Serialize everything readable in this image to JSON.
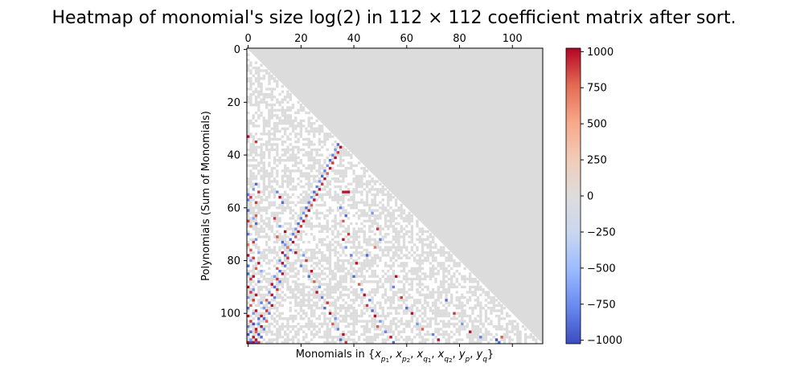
{
  "chart_data": {
    "type": "heatmap",
    "title": "Heatmap of monomial's size log(2) in 112 × 112 coefficient matrix after sort.",
    "xlabel": "Monomials in {x_{p1}, x_{p2}, x_{q1}, x_{q2}, y_p, y_q}",
    "xlabel_parts": {
      "prefix": "Monomials in ",
      "open": "{",
      "close": "}",
      "var": "x",
      "var_y": "y",
      "sub_p": "p",
      "sub_q": "q",
      "sub_1": "1",
      "sub_2": "2",
      "comma": ", "
    },
    "ylabel": "Polynomials (Sum of Monomials)",
    "matrix_size": [
      112,
      112
    ],
    "x_axis_position": "top",
    "xticks": [
      0,
      20,
      40,
      60,
      80,
      100
    ],
    "yticks": [
      0,
      20,
      40,
      60,
      80,
      100
    ],
    "xlim": [
      0,
      112
    ],
    "ylim": [
      0,
      112
    ],
    "upper_triangle_value": 0,
    "colorbar": {
      "colormap": "coolwarm",
      "vmin": -1024,
      "vmax": 1024,
      "ticks": [
        1000,
        750,
        500,
        250,
        0,
        -250,
        -500,
        -750,
        -1000
      ],
      "tick_labels": [
        "1000",
        "750",
        "500",
        "250",
        "0",
        "−250",
        "−500",
        "−750",
        "−1000"
      ],
      "stops": [
        "#3b4cc0",
        "#6889ee",
        "#9abbff",
        "#c9d7f0",
        "#dddcdc",
        "#f2cbb7",
        "#f7a889",
        "#e36a53",
        "#b40426"
      ]
    },
    "zero_color": "#dcdcdc",
    "empty_color": "#ffffff",
    "lower_triangle_pattern": {
      "description_of_cells": "white (no monomial) or grey (0) in lower triangle; colored cells are nonzero",
      "zero_fraction": 0.55
    },
    "nonzero_cells": [
      [
        33,
        0,
        1000
      ],
      [
        35,
        3,
        900
      ],
      [
        51,
        3,
        -900
      ],
      [
        53,
        2,
        -700
      ],
      [
        54,
        4,
        900
      ],
      [
        55,
        0,
        -800
      ],
      [
        56,
        1,
        900
      ],
      [
        57,
        0,
        -800
      ],
      [
        58,
        3,
        900
      ],
      [
        61,
        0,
        -900
      ],
      [
        63,
        3,
        800
      ],
      [
        64,
        2,
        -600
      ],
      [
        65,
        0,
        900
      ],
      [
        66,
        3,
        -900
      ],
      [
        67,
        1,
        700
      ],
      [
        70,
        0,
        -800
      ],
      [
        72,
        3,
        -700
      ],
      [
        73,
        2,
        900
      ],
      [
        74,
        0,
        700
      ],
      [
        76,
        1,
        800
      ],
      [
        77,
        4,
        -600
      ],
      [
        78,
        0,
        1000
      ],
      [
        79,
        2,
        900
      ],
      [
        80,
        1,
        -700
      ],
      [
        81,
        4,
        1000
      ],
      [
        82,
        0,
        -900
      ],
      [
        83,
        3,
        800
      ],
      [
        84,
        5,
        -600
      ],
      [
        85,
        0,
        -900
      ],
      [
        86,
        2,
        1000
      ],
      [
        87,
        1,
        900
      ],
      [
        88,
        4,
        -800
      ],
      [
        90,
        0,
        1000
      ],
      [
        91,
        2,
        -700
      ],
      [
        92,
        1,
        900
      ],
      [
        93,
        3,
        1000
      ],
      [
        94,
        0,
        -700
      ],
      [
        95,
        2,
        900
      ],
      [
        96,
        5,
        -800
      ],
      [
        97,
        1,
        800
      ],
      [
        98,
        0,
        -900
      ],
      [
        99,
        3,
        1000
      ],
      [
        100,
        2,
        -700
      ],
      [
        101,
        0,
        1000
      ],
      [
        102,
        4,
        -900
      ],
      [
        103,
        1,
        900
      ],
      [
        104,
        2,
        -1000
      ],
      [
        105,
        0,
        -800
      ],
      [
        106,
        3,
        1000
      ],
      [
        107,
        1,
        -900
      ],
      [
        108,
        0,
        -1000
      ],
      [
        109,
        2,
        1000
      ],
      [
        110,
        1,
        -700
      ],
      [
        111,
        0,
        1000
      ],
      [
        111,
        1,
        -1000
      ],
      [
        111,
        2,
        1000
      ],
      [
        111,
        3,
        -900
      ],
      [
        111,
        4,
        900
      ],
      [
        110,
        3,
        1000
      ],
      [
        109,
        5,
        -900
      ],
      [
        108,
        4,
        -1000
      ],
      [
        107,
        3,
        800
      ],
      [
        106,
        6,
        -800
      ],
      [
        105,
        5,
        1000
      ],
      [
        104,
        4,
        -700
      ],
      [
        103,
        7,
        800
      ],
      [
        102,
        6,
        -900
      ],
      [
        101,
        5,
        1000
      ],
      [
        100,
        8,
        -800
      ],
      [
        99,
        7,
        900
      ],
      [
        98,
        6,
        -700
      ],
      [
        97,
        9,
        1000
      ],
      [
        96,
        8,
        -900
      ],
      [
        95,
        7,
        800
      ],
      [
        94,
        10,
        -800
      ],
      [
        93,
        9,
        1000
      ],
      [
        92,
        8,
        -700
      ],
      [
        91,
        11,
        900
      ],
      [
        90,
        10,
        -900
      ],
      [
        89,
        9,
        1000
      ],
      [
        88,
        12,
        -800
      ],
      [
        87,
        11,
        900
      ],
      [
        86,
        10,
        -700
      ],
      [
        85,
        13,
        1000
      ],
      [
        84,
        12,
        -900
      ],
      [
        83,
        11,
        800
      ],
      [
        82,
        14,
        -800
      ],
      [
        81,
        13,
        1000
      ],
      [
        80,
        12,
        -700
      ],
      [
        79,
        15,
        900
      ],
      [
        78,
        14,
        -900
      ],
      [
        77,
        13,
        1000
      ],
      [
        76,
        16,
        -800
      ],
      [
        75,
        15,
        900
      ],
      [
        74,
        14,
        -700
      ],
      [
        73,
        17,
        1000
      ],
      [
        72,
        16,
        -900
      ],
      [
        71,
        18,
        800
      ],
      [
        70,
        17,
        -800
      ],
      [
        69,
        19,
        1000
      ],
      [
        68,
        18,
        -700
      ],
      [
        67,
        20,
        900
      ],
      [
        66,
        19,
        -900
      ],
      [
        65,
        21,
        1000
      ],
      [
        64,
        20,
        -800
      ],
      [
        63,
        22,
        900
      ],
      [
        62,
        21,
        -700
      ],
      [
        61,
        23,
        1000
      ],
      [
        60,
        22,
        -900
      ],
      [
        59,
        24,
        800
      ],
      [
        58,
        23,
        -800
      ],
      [
        57,
        25,
        1000
      ],
      [
        56,
        24,
        -700
      ],
      [
        55,
        26,
        900
      ],
      [
        54,
        25,
        -900
      ],
      [
        53,
        27,
        1000
      ],
      [
        52,
        26,
        -800
      ],
      [
        51,
        28,
        900
      ],
      [
        50,
        27,
        -700
      ],
      [
        49,
        29,
        1000
      ],
      [
        48,
        28,
        -900
      ],
      [
        47,
        30,
        800
      ],
      [
        46,
        29,
        -800
      ],
      [
        45,
        31,
        1000
      ],
      [
        44,
        30,
        -700
      ],
      [
        43,
        32,
        900
      ],
      [
        42,
        31,
        -900
      ],
      [
        41,
        33,
        1000
      ],
      [
        40,
        32,
        -800
      ],
      [
        39,
        34,
        900
      ],
      [
        38,
        33,
        -700
      ],
      [
        37,
        35,
        1000
      ],
      [
        36,
        34,
        -900
      ],
      [
        35,
        36,
        800
      ],
      [
        34,
        35,
        -800
      ],
      [
        33,
        37,
        1000
      ],
      [
        32,
        36,
        -700
      ],
      [
        31,
        38,
        900
      ],
      [
        30,
        37,
        -900
      ],
      [
        29,
        39,
        1000
      ],
      [
        28,
        38,
        -800
      ],
      [
        27,
        40,
        900
      ],
      [
        26,
        39,
        -700
      ],
      [
        25,
        41,
        1000
      ],
      [
        24,
        40,
        -900
      ],
      [
        23,
        42,
        800
      ],
      [
        22,
        41,
        -800
      ],
      [
        21,
        43,
        1000
      ],
      [
        20,
        42,
        -700
      ],
      [
        19,
        44,
        900
      ],
      [
        18,
        43,
        -900
      ],
      [
        17,
        45,
        1000
      ],
      [
        16,
        44,
        -800
      ],
      [
        15,
        46,
        900
      ],
      [
        14,
        45,
        -700
      ],
      [
        13,
        47,
        1000
      ],
      [
        12,
        46,
        -900
      ],
      [
        11,
        48,
        800
      ],
      [
        10,
        47,
        -800
      ],
      [
        9,
        49,
        1000
      ],
      [
        8,
        48,
        -700
      ],
      [
        7,
        50,
        900
      ],
      [
        6,
        49,
        -900
      ],
      [
        5,
        51,
        1000
      ],
      [
        4,
        50,
        -800
      ],
      [
        3,
        52,
        900
      ],
      [
        2,
        51,
        -700
      ],
      [
        1,
        53,
        1000
      ],
      [
        56,
        12,
        1000
      ],
      [
        54,
        11,
        -800
      ],
      [
        58,
        13,
        -900
      ],
      [
        64,
        10,
        900
      ],
      [
        67,
        12,
        -700
      ],
      [
        69,
        14,
        1000
      ],
      [
        71,
        11,
        800
      ],
      [
        73,
        13,
        -900
      ],
      [
        75,
        15,
        700
      ],
      [
        77,
        18,
        1000
      ],
      [
        78,
        21,
        -700
      ],
      [
        80,
        22,
        900
      ],
      [
        82,
        20,
        -800
      ],
      [
        84,
        24,
        1000
      ],
      [
        86,
        23,
        -900
      ],
      [
        88,
        25,
        800
      ],
      [
        90,
        27,
        -700
      ],
      [
        92,
        26,
        1000
      ],
      [
        94,
        28,
        -800
      ],
      [
        96,
        30,
        900
      ],
      [
        98,
        29,
        -900
      ],
      [
        100,
        31,
        1000
      ],
      [
        102,
        33,
        -700
      ],
      [
        104,
        32,
        800
      ],
      [
        106,
        34,
        -800
      ],
      [
        108,
        36,
        1000
      ],
      [
        110,
        35,
        -900
      ],
      [
        111,
        37,
        900
      ],
      [
        54,
        37,
        1000
      ],
      [
        54,
        38,
        1000
      ],
      [
        54,
        36,
        1000
      ],
      [
        60,
        35,
        -800
      ],
      [
        63,
        37,
        -900
      ],
      [
        65,
        36,
        800
      ],
      [
        72,
        36,
        1000
      ],
      [
        75,
        37,
        -700
      ],
      [
        70,
        38,
        900
      ],
      [
        78,
        39,
        -800
      ],
      [
        81,
        41,
        1000
      ],
      [
        86,
        40,
        -900
      ],
      [
        89,
        42,
        800
      ],
      [
        91,
        43,
        -700
      ],
      [
        93,
        44,
        1000
      ],
      [
        95,
        46,
        -800
      ],
      [
        97,
        45,
        900
      ],
      [
        99,
        47,
        -900
      ],
      [
        101,
        48,
        1000
      ],
      [
        103,
        50,
        -700
      ],
      [
        105,
        49,
        800
      ],
      [
        107,
        52,
        -800
      ],
      [
        109,
        54,
        1000
      ],
      [
        111,
        55,
        -900
      ],
      [
        78,
        45,
        -900
      ],
      [
        75,
        48,
        700
      ],
      [
        72,
        50,
        -800
      ],
      [
        68,
        49,
        900
      ],
      [
        62,
        47,
        -700
      ],
      [
        86,
        56,
        1000
      ],
      [
        90,
        55,
        -800
      ],
      [
        94,
        58,
        900
      ],
      [
        98,
        60,
        -900
      ],
      [
        100,
        62,
        1000
      ],
      [
        104,
        64,
        -700
      ],
      [
        106,
        66,
        800
      ],
      [
        108,
        70,
        -800
      ],
      [
        110,
        72,
        1000
      ],
      [
        95,
        75,
        -900
      ],
      [
        100,
        78,
        900
      ],
      [
        104,
        81,
        -700
      ],
      [
        107,
        84,
        1000
      ],
      [
        109,
        88,
        -800
      ],
      [
        110,
        94,
        -1000
      ],
      [
        111,
        95,
        -900
      ],
      [
        109,
        96,
        800
      ]
    ]
  }
}
